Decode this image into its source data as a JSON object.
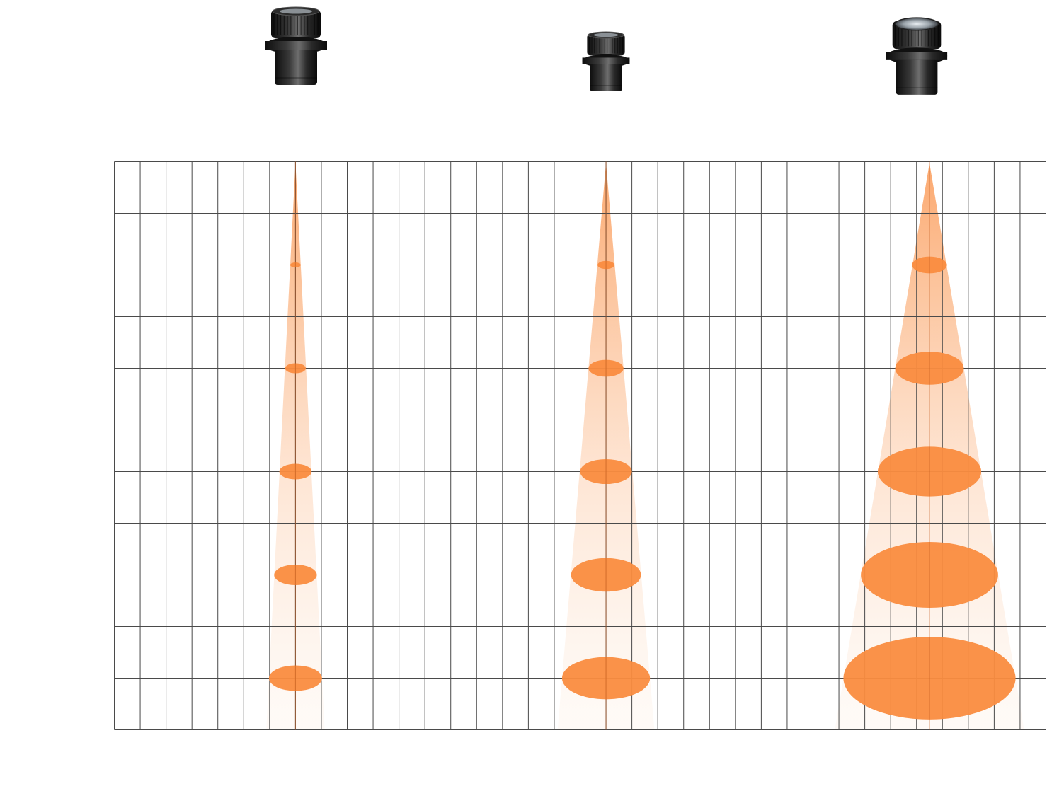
{
  "lenses": [
    {
      "icon": "narrow-beam-lens-icon"
    },
    {
      "icon": "medium-beam-lens-icon"
    },
    {
      "icon": "wide-beam-lens-icon"
    }
  ],
  "colors": {
    "grid_line": "#4a4a4a",
    "spot_fill": "#fa8c3f",
    "beam_fill": "#fbc9a3",
    "lens_body": "#1c1c1c",
    "lens_highlight": "#6b6b6b"
  },
  "diagram": {
    "grid_columns": 36,
    "grid_rows": 11,
    "beam_axis_columns": [
      7,
      19,
      31.5
    ],
    "spot_rows": [
      2,
      4,
      6,
      8,
      10
    ],
    "spot_widths_in_columns": [
      [
        0.4,
        0.8,
        1.25,
        1.65,
        2.05
      ],
      [
        0.65,
        1.35,
        2.0,
        2.7,
        3.4
      ],
      [
        1.35,
        2.65,
        4.0,
        5.3,
        6.65
      ]
    ]
  }
}
